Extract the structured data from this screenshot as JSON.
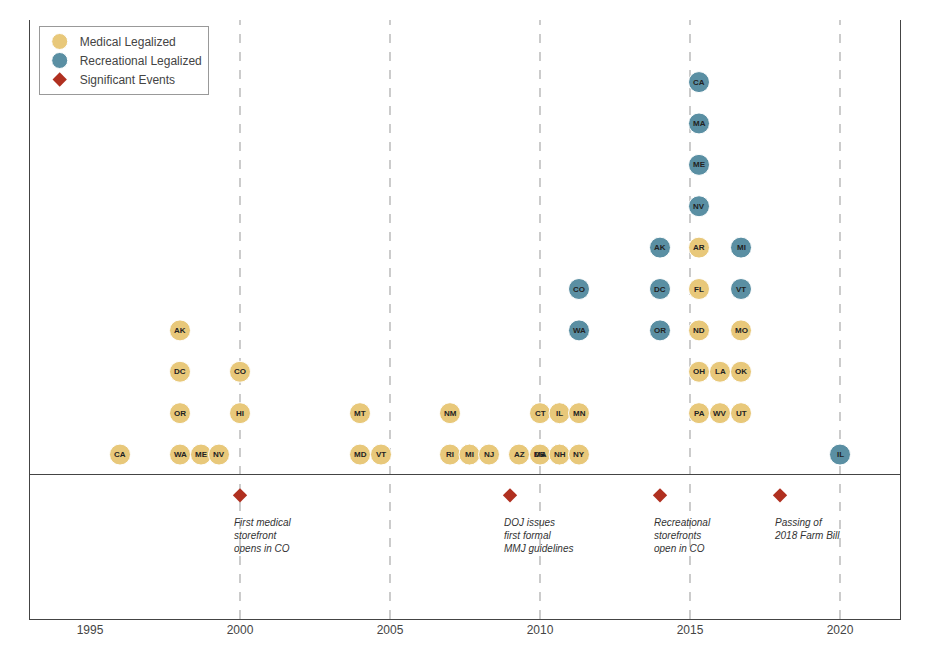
{
  "chart_data": {
    "type": "timeline",
    "xlim": [
      1993,
      2022
    ],
    "xticks": [
      1995,
      2000,
      2005,
      2010,
      2015,
      2020
    ],
    "ylim": [
      -0.5,
      10.5
    ],
    "tick_labels": "x",
    "grid": false,
    "legend": "upper left",
    "vlines": [
      2000,
      2005,
      2010,
      2015,
      2020
    ],
    "series": [
      {
        "name": "Medical Legalized",
        "type": "scatter",
        "marker": "circle",
        "color": "#e8c87a",
        "x": [
          1996.0,
          1998.0,
          1998.0,
          1998.0,
          1998.0,
          1998.7,
          1999.3,
          2000.0,
          2000.0,
          2004.0,
          2004.0,
          2004.7,
          2007.0,
          2007.0,
          2007.65,
          2008.3,
          2009.3,
          2010.0,
          2010.0,
          2010.65,
          2011.3,
          2010.0,
          2010.65,
          2011.3,
          2015.3,
          2015.3,
          2015.3,
          2015.3,
          2016.0,
          2015.3,
          2016.0,
          2016.7,
          2016.7,
          2016.7
        ],
        "values": [
          0,
          3,
          2,
          1,
          0,
          0,
          0,
          2,
          1,
          1,
          0,
          0,
          1,
          0,
          0,
          0,
          0,
          0,
          1,
          1,
          1,
          0,
          0,
          0,
          5,
          4,
          3,
          2,
          2,
          1,
          1,
          3,
          2,
          1
        ],
        "labels": [
          "CA",
          "AK",
          "DC",
          "OR",
          "WA",
          "ME",
          "NV",
          "CO",
          "HI",
          "MT",
          "MD",
          "VT",
          "NM",
          "RI",
          "MI",
          "NJ",
          "AZ",
          "DE",
          "CT",
          "IL",
          "MN",
          "MA",
          "NH",
          "NY",
          "AR",
          "FL",
          "ND",
          "OH",
          "LA",
          "PA",
          "WV",
          "MO",
          "OK",
          "UT"
        ]
      },
      {
        "name": "Recreational Legalized",
        "type": "scatter",
        "marker": "circle",
        "color": "#5a8fa3",
        "x": [
          2011.3,
          2011.3,
          2014.0,
          2014.0,
          2014.0,
          2015.3,
          2015.3,
          2015.3,
          2015.3,
          2016.7,
          2016.7,
          2020.0
        ],
        "values": [
          4,
          3,
          5,
          4,
          3,
          9,
          8,
          7,
          6,
          5,
          4,
          0
        ],
        "labels": [
          "CO",
          "WA",
          "AK",
          "DC",
          "OR",
          "CA",
          "MA",
          "ME",
          "NV",
          "MI",
          "VT",
          "IL"
        ]
      },
      {
        "name": "Significant Events",
        "type": "events",
        "marker": "diamond",
        "color": "#b03020",
        "x": [
          2000.0,
          2009.0,
          2014.0,
          2018.0
        ],
        "labels": [
          "First medical\nstorefront\nopens in CO",
          "DOJ issues\nfirst formal\nMMJ guidelines",
          "Recreational\nstorefronts\nopen in CO",
          "Passing of\n2018 Farm Bill"
        ]
      }
    ]
  }
}
